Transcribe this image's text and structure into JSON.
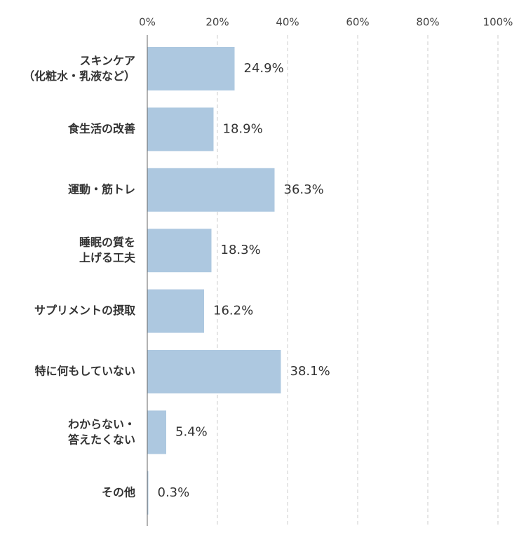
{
  "chart_data": {
    "type": "bar",
    "orientation": "horizontal",
    "categories": [
      "スキンケア\n（化粧水・乳液など）",
      "食生活の改善",
      "運動・筋トレ",
      "睡眠の質を\n上げる工夫",
      "サプリメントの摂取",
      "特に何もしていない",
      "わからない・\n答えたくない",
      "その他"
    ],
    "values": [
      24.9,
      18.9,
      36.3,
      18.3,
      16.2,
      38.1,
      5.4,
      0.3
    ],
    "value_labels": [
      "24.9%",
      "18.9%",
      "36.3%",
      "18.3%",
      "16.2%",
      "38.1%",
      "5.4%",
      "0.3%"
    ],
    "color": "#adc8e0",
    "xlim": [
      0,
      100
    ],
    "xticks": [
      {
        "value": 0,
        "label": "0%"
      },
      {
        "value": 20,
        "label": "20%"
      },
      {
        "value": 40,
        "label": "40%"
      },
      {
        "value": 60,
        "label": "60%"
      },
      {
        "value": 80,
        "label": "80%"
      },
      {
        "value": 100,
        "label": "100%"
      }
    ],
    "grid": true
  }
}
